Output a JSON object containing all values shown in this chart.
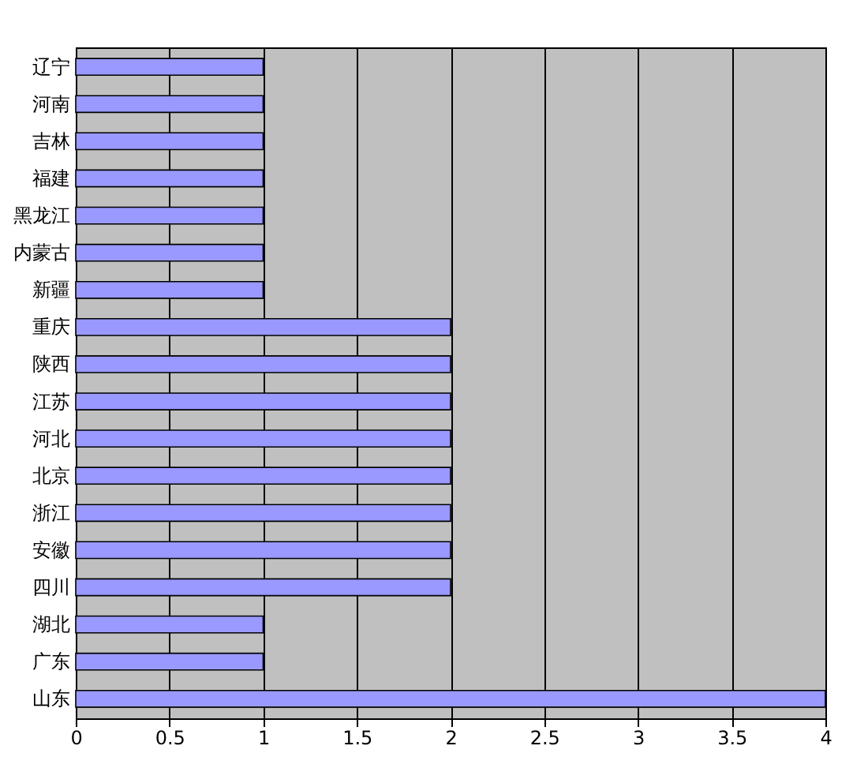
{
  "chart_data": {
    "type": "bar",
    "orientation": "horizontal",
    "categories": [
      "辽宁",
      "河南",
      "吉林",
      "福建",
      "黑龙江",
      "内蒙古",
      "新疆",
      "重庆",
      "陕西",
      "江苏",
      "河北",
      "北京",
      "浙江",
      "安徽",
      "四川",
      "湖北",
      "广东",
      "山东"
    ],
    "values": [
      1,
      1,
      1,
      1,
      1,
      1,
      1,
      2,
      2,
      2,
      2,
      2,
      2,
      2,
      2,
      1,
      1,
      4
    ],
    "color": "#9999ff",
    "xlim": [
      0,
      4
    ],
    "xticks": [
      0,
      0.5,
      1,
      1.5,
      2,
      2.5,
      3,
      3.5,
      4
    ],
    "grid": "x"
  }
}
